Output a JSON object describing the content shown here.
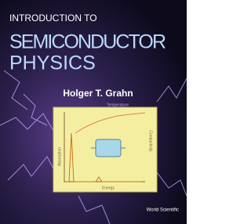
{
  "cover": {
    "title_line1": "INTRODUCTION TO",
    "title_line2": "SEMICONDUCTOR",
    "title_line3": "PHYSICS",
    "author": "Holger T. Grahn",
    "figure": {
      "top_label": "Temperature",
      "x_label": "Energy",
      "y_label": "Absorption",
      "right_label": "Conductivity"
    },
    "publisher": "World Scientific"
  }
}
